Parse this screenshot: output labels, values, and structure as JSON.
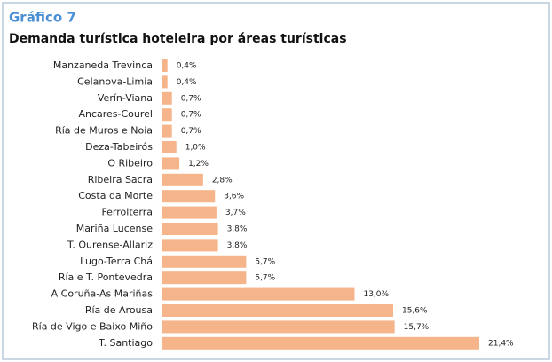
{
  "chart_data": {
    "type": "bar",
    "orientation": "horizontal",
    "title": "Gráfico 7",
    "subtitle": "Demanda turística hoteleira por áreas turísticas",
    "categories": [
      "Manzaneda Trevinca",
      "Celanova-Limia",
      "Verín-Viana",
      "Ancares-Courel",
      "Ría de Muros e Noia",
      "Deza-Tabeirós",
      "O Ribeiro",
      "Ribeira Sacra",
      "Costa da Morte",
      "Ferrolterra",
      "Mariña Lucense",
      "T. Ourense-Allariz",
      "Lugo-Terra Chá",
      "Ría e T. Pontevedra",
      "A Coruña-As Mariñas",
      "Ría de Arousa",
      "Ría de Vigo e Baixo Miño",
      "T. Santiago"
    ],
    "values": [
      0.4,
      0.4,
      0.7,
      0.7,
      0.7,
      1.0,
      1.2,
      2.8,
      3.6,
      3.7,
      3.8,
      3.8,
      5.7,
      5.7,
      13.0,
      15.6,
      15.7,
      21.4
    ],
    "value_labels": [
      "0,4%",
      "0,4%",
      "0,7%",
      "0,7%",
      "0,7%",
      "1,0%",
      "1,2%",
      "2,8%",
      "3,6%",
      "3,7%",
      "3,8%",
      "3,8%",
      "5,7%",
      "5,7%",
      "13,0%",
      "15,6%",
      "15,7%",
      "21,4%"
    ],
    "color": "#f5b48a"
  }
}
